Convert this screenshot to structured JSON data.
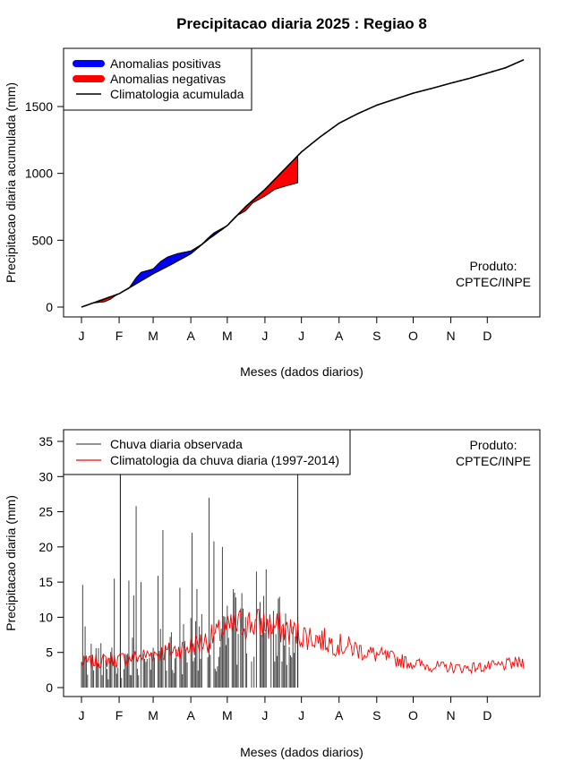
{
  "chart_data": [
    {
      "type": "area",
      "title": "Precipitacao diaria 2025 : Regiao 8",
      "xlabel": "Meses (dados diarios)",
      "ylabel": "Precipitacao diaria acumulada (mm)",
      "x_unit": "day of year",
      "xlim": [
        1,
        365
      ],
      "ylim": [
        0,
        1900
      ],
      "y_ticks": [
        0,
        500,
        1000,
        1500
      ],
      "x_ticks": [
        {
          "day": 1,
          "label": "J"
        },
        {
          "day": 32,
          "label": "F"
        },
        {
          "day": 60,
          "label": "M"
        },
        {
          "day": 91,
          "label": "A"
        },
        {
          "day": 121,
          "label": "M"
        },
        {
          "day": 152,
          "label": "J"
        },
        {
          "day": 182,
          "label": "J"
        },
        {
          "day": 213,
          "label": "A"
        },
        {
          "day": 244,
          "label": "S"
        },
        {
          "day": 274,
          "label": "O"
        },
        {
          "day": 305,
          "label": "N"
        },
        {
          "day": 335,
          "label": "D"
        }
      ],
      "legend": {
        "position": "top-left",
        "entries": [
          {
            "label": "Anomalias positivas",
            "color": "#0000ff"
          },
          {
            "label": "Anomalias negativas",
            "color": "#ff0000"
          },
          {
            "label": "Climatologia acumulada",
            "color": "#000000"
          }
        ]
      },
      "annotation": [
        "Produto:",
        "CPTEC/INPE"
      ],
      "climatology_cumulative": {
        "x": [
          1,
          15,
          32,
          46,
          60,
          75,
          91,
          105,
          121,
          136,
          152,
          167,
          182,
          197,
          213,
          228,
          244,
          259,
          274,
          289,
          305,
          320,
          335,
          350,
          365
        ],
        "y": [
          0,
          45,
          100,
          175,
          250,
          320,
          400,
          505,
          610,
          750,
          880,
          1020,
          1160,
          1270,
          1375,
          1445,
          1510,
          1555,
          1600,
          1635,
          1675,
          1710,
          1750,
          1790,
          1850
        ]
      },
      "observed_cumulative": {
        "x": [
          1,
          10,
          20,
          25,
          28,
          32,
          40,
          46,
          50,
          60,
          66,
          72,
          80,
          91,
          100,
          105,
          110,
          121,
          128,
          136,
          142,
          152,
          160,
          167,
          175,
          179
        ],
        "y": [
          0,
          30,
          40,
          60,
          80,
          100,
          140,
          220,
          260,
          285,
          340,
          375,
          400,
          420,
          470,
          515,
          555,
          610,
          680,
          720,
          780,
          830,
          880,
          900,
          920,
          930
        ]
      }
    },
    {
      "type": "bar",
      "xlabel": "Meses (dados diarios)",
      "ylabel": "Precipitacao diaria (mm)",
      "x_unit": "day of year",
      "xlim": [
        1,
        365
      ],
      "ylim": [
        0,
        36
      ],
      "y_ticks": [
        0,
        5,
        10,
        15,
        20,
        25,
        30,
        35
      ],
      "legend": {
        "position": "top-left",
        "entries": [
          {
            "label": "Chuva diaria observada",
            "color": "#555555"
          },
          {
            "label": "Climatologia da chuva diaria (1997-2014)",
            "color": "#ff0000"
          }
        ]
      },
      "annotation": [
        "Produto:",
        "CPTEC/INPE"
      ],
      "observed_last_day": 179,
      "observed_peaks": {
        "x": [
          2,
          4,
          28,
          33,
          40,
          44,
          46,
          50,
          64,
          68,
          82,
          92,
          96,
          106,
          110,
          117,
          126,
          145,
          153
        ],
        "y": [
          14.6,
          8.7,
          15.5,
          30.5,
          15.2,
          13.1,
          25.8,
          15.0,
          15.9,
          22.4,
          14.2,
          22.0,
          14.0,
          27.0,
          20.8,
          20.0,
          14.0,
          16.5,
          16.8
        ]
      },
      "climatology_daily": {
        "x": [
          1,
          15,
          30,
          45,
          60,
          75,
          90,
          105,
          120,
          135,
          150,
          165,
          180,
          195,
          210,
          225,
          240,
          255,
          270,
          285,
          300,
          315,
          330,
          345,
          365
        ],
        "y": [
          3.5,
          3.8,
          4.0,
          4.3,
          4.8,
          5.2,
          5.8,
          6.8,
          8.2,
          9.2,
          9.0,
          8.4,
          7.6,
          7.0,
          6.2,
          5.6,
          4.8,
          4.2,
          3.6,
          3.1,
          2.9,
          2.8,
          2.9,
          3.1,
          3.6
        ]
      }
    }
  ]
}
